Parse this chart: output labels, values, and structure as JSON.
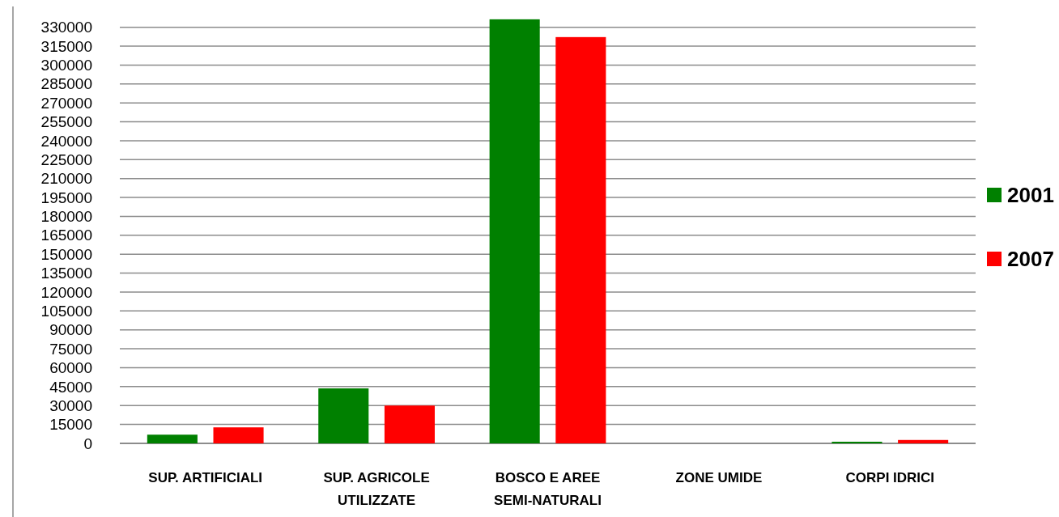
{
  "chart_data": {
    "type": "bar",
    "categories": [
      "SUP. ARTIFICIALI",
      "SUP. AGRICOLE UTILIZZATE",
      "BOSCO E AREE SEMI-NATURALI",
      "ZONE UMIDE",
      "CORPI IDRICI"
    ],
    "series": [
      {
        "name": "2001",
        "color": "#008000",
        "values": [
          6900,
          43600,
          336300,
          0,
          1300
        ]
      },
      {
        "name": "2007",
        "color": "#ff0000",
        "values": [
          12700,
          30000,
          322200,
          0,
          2700
        ]
      }
    ],
    "ylim": [
      0,
      337500
    ],
    "yticks": [
      0,
      15000,
      30000,
      45000,
      60000,
      75000,
      90000,
      105000,
      120000,
      135000,
      150000,
      165000,
      180000,
      195000,
      210000,
      225000,
      240000,
      255000,
      270000,
      285000,
      300000,
      315000,
      330000
    ],
    "grid": "y",
    "legend": "right"
  }
}
